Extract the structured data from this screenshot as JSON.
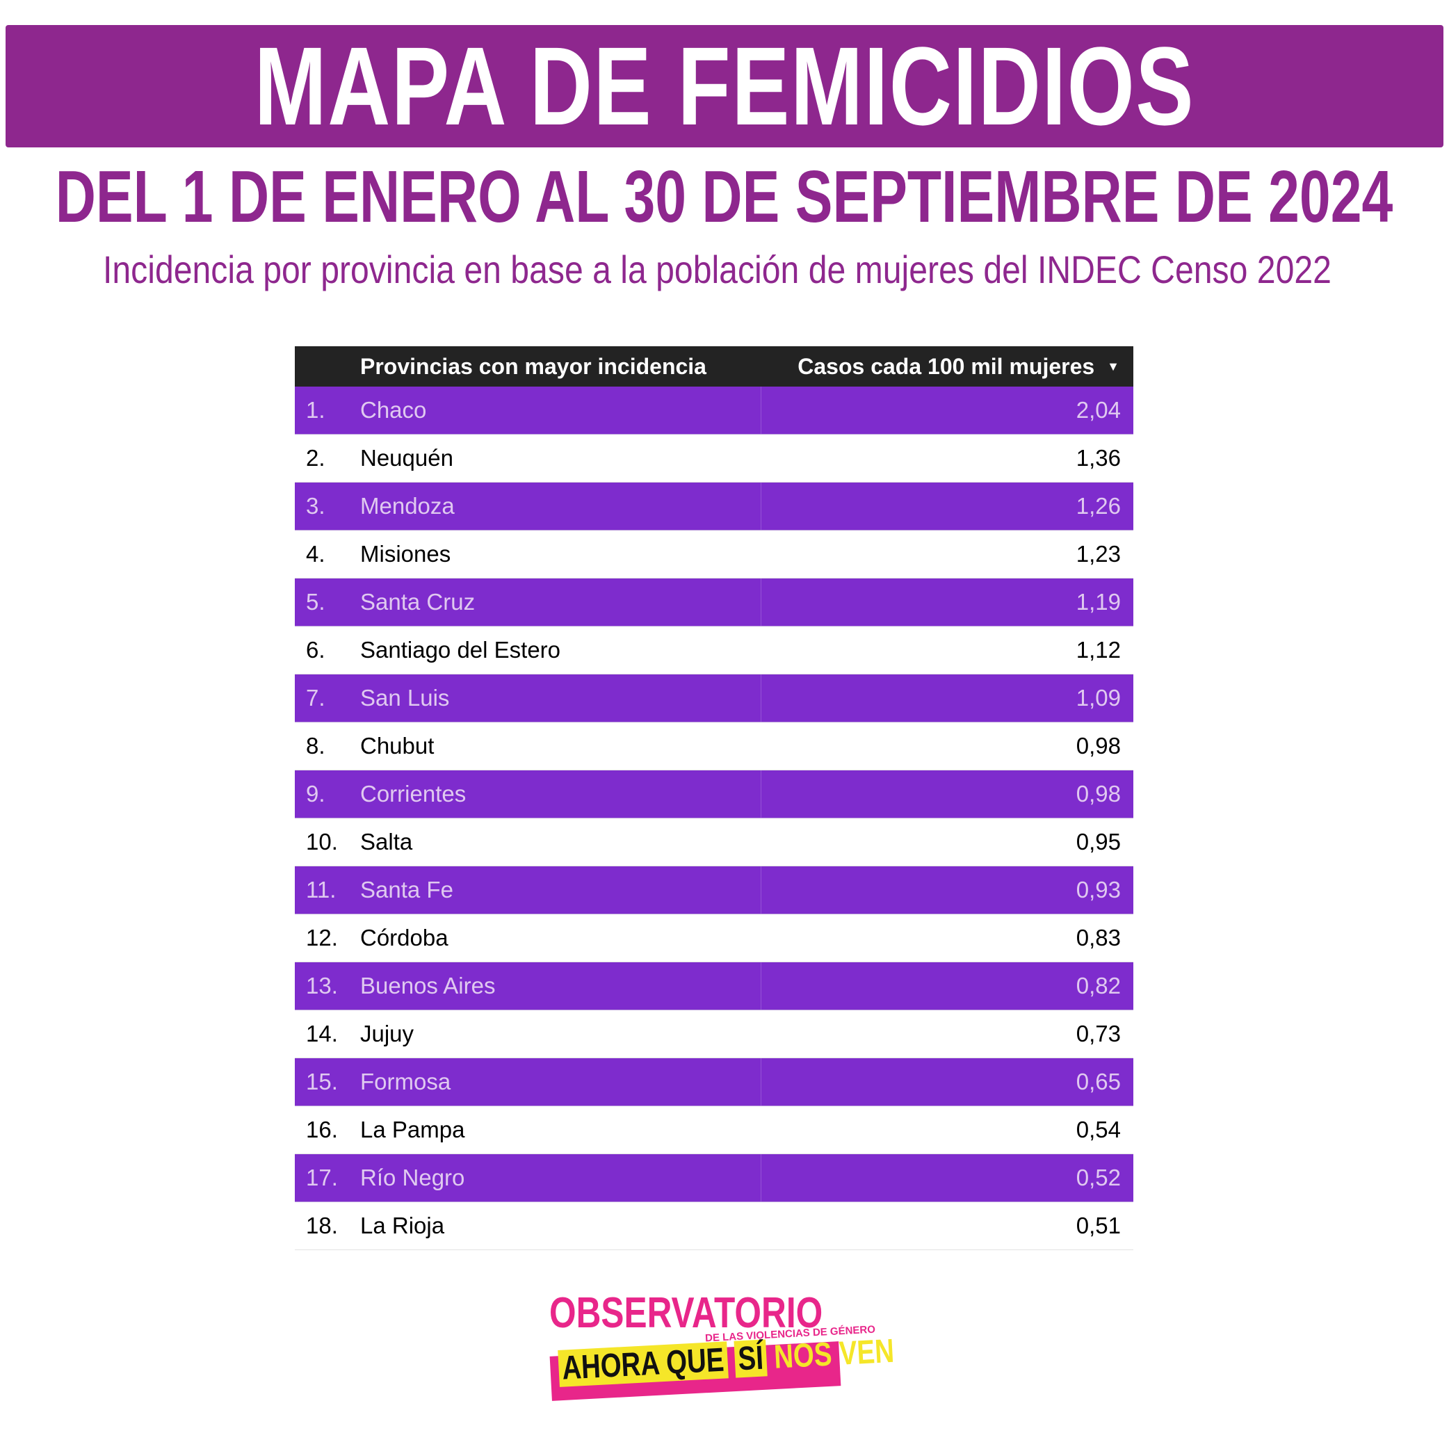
{
  "header": {
    "title": "MAPA DE FEMICIDIOS",
    "subtitle": "DEL 1 DE ENERO AL 30 DE SEPTIEMBRE DE 2024",
    "caption": "Incidencia por provincia en base a la población de mujeres del INDEC Censo 2022"
  },
  "colors": {
    "brand_purple": "#8e278e",
    "row_purple": "#7e2ccd",
    "header_dark": "#232323",
    "logo_pink": "#e8268a",
    "logo_yellow": "#f5e629"
  },
  "chart_data": {
    "type": "table",
    "columns": [
      "Provincias con mayor incidencia",
      "Casos cada 100 mil mujeres"
    ],
    "sort_icon": "sort-descending-icon",
    "rows": [
      {
        "rank": "1.",
        "province": "Chaco",
        "value": "2,04"
      },
      {
        "rank": "2.",
        "province": "Neuquén",
        "value": "1,36"
      },
      {
        "rank": "3.",
        "province": "Mendoza",
        "value": "1,26"
      },
      {
        "rank": "4.",
        "province": "Misiones",
        "value": "1,23"
      },
      {
        "rank": "5.",
        "province": "Santa Cruz",
        "value": "1,19"
      },
      {
        "rank": "6.",
        "province": "Santiago del Estero",
        "value": "1,12"
      },
      {
        "rank": "7.",
        "province": "San Luis",
        "value": "1,09"
      },
      {
        "rank": "8.",
        "province": "Chubut",
        "value": "0,98"
      },
      {
        "rank": "9.",
        "province": "Corrientes",
        "value": "0,98"
      },
      {
        "rank": "10.",
        "province": "Salta",
        "value": "0,95"
      },
      {
        "rank": "11.",
        "province": "Santa Fe",
        "value": "0,93"
      },
      {
        "rank": "12.",
        "province": "Córdoba",
        "value": "0,83"
      },
      {
        "rank": "13.",
        "province": "Buenos Aires",
        "value": "0,82"
      },
      {
        "rank": "14.",
        "province": "Jujuy",
        "value": "0,73"
      },
      {
        "rank": "15.",
        "province": "Formosa",
        "value": "0,65"
      },
      {
        "rank": "16.",
        "province": "La Pampa",
        "value": "0,54"
      },
      {
        "rank": "17.",
        "province": "Río Negro",
        "value": "0,52"
      },
      {
        "rank": "18.",
        "province": "La Rioja",
        "value": "0,51"
      }
    ]
  },
  "logo": {
    "top": "OBSERVATORIO",
    "sub": "DE LAS VIOLENCIAS DE GÉNERO",
    "bottom_left": "AHORA QUE",
    "bottom_highlight": "SÍ",
    "bottom_right": "NOS VEN"
  }
}
